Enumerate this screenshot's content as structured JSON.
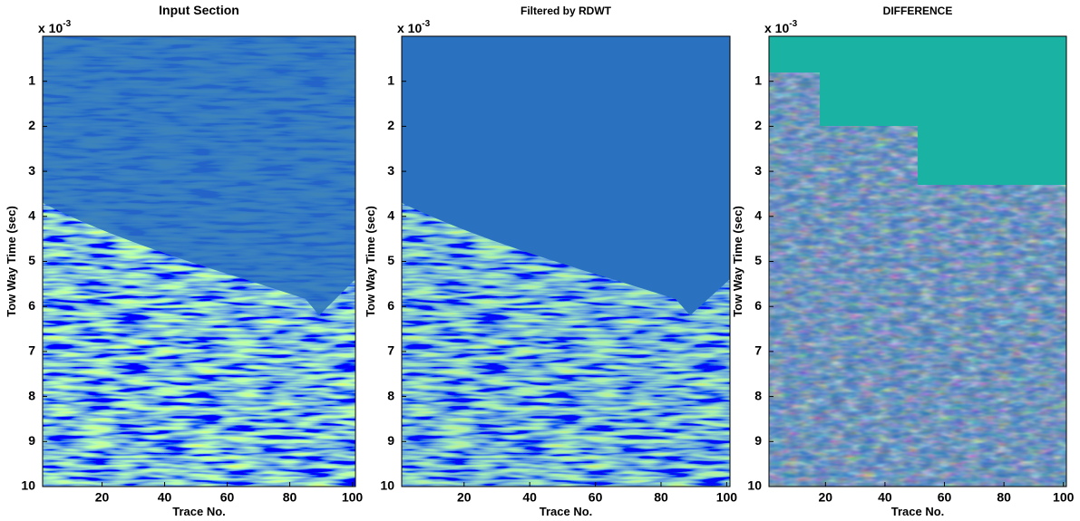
{
  "chart_data": [
    {
      "type": "image",
      "title": "Input Section",
      "xlabel": "Trace No.",
      "ylabel": "Tow Way Time (sec)",
      "y_scale_base": "x 10",
      "y_scale_exponent": "-3",
      "xlim": [
        1,
        101
      ],
      "xticks": [
        20,
        40,
        60,
        80,
        100
      ],
      "ylim": [
        0,
        10
      ],
      "yticks": [
        1,
        2,
        3,
        4,
        5,
        6,
        7,
        8,
        9,
        10
      ],
      "y_reversed": true
    },
    {
      "type": "image",
      "title": "Filtered by RDWT",
      "xlabel": "Trace No.",
      "ylabel": "Tow Way Time (sec)",
      "y_scale_base": "x 10",
      "y_scale_exponent": "-3",
      "xlim": [
        1,
        101
      ],
      "xticks": [
        20,
        40,
        60,
        80,
        100
      ],
      "ylim": [
        0,
        10
      ],
      "yticks": [
        1,
        2,
        3,
        4,
        5,
        6,
        7,
        8,
        9,
        10
      ],
      "y_reversed": true
    },
    {
      "type": "image",
      "title": "DIFFERENCE",
      "xlabel": "Trace No.",
      "ylabel": "Tow Way Time (sec)",
      "y_scale_base": "x 10",
      "y_scale_exponent": "-3",
      "xlim": [
        1,
        101
      ],
      "xticks": [
        20,
        40,
        60,
        80,
        100
      ],
      "ylim": [
        0,
        10
      ],
      "yticks": [
        1,
        2,
        3,
        4,
        5,
        6,
        7,
        8,
        9,
        10
      ],
      "y_reversed": true
    }
  ]
}
